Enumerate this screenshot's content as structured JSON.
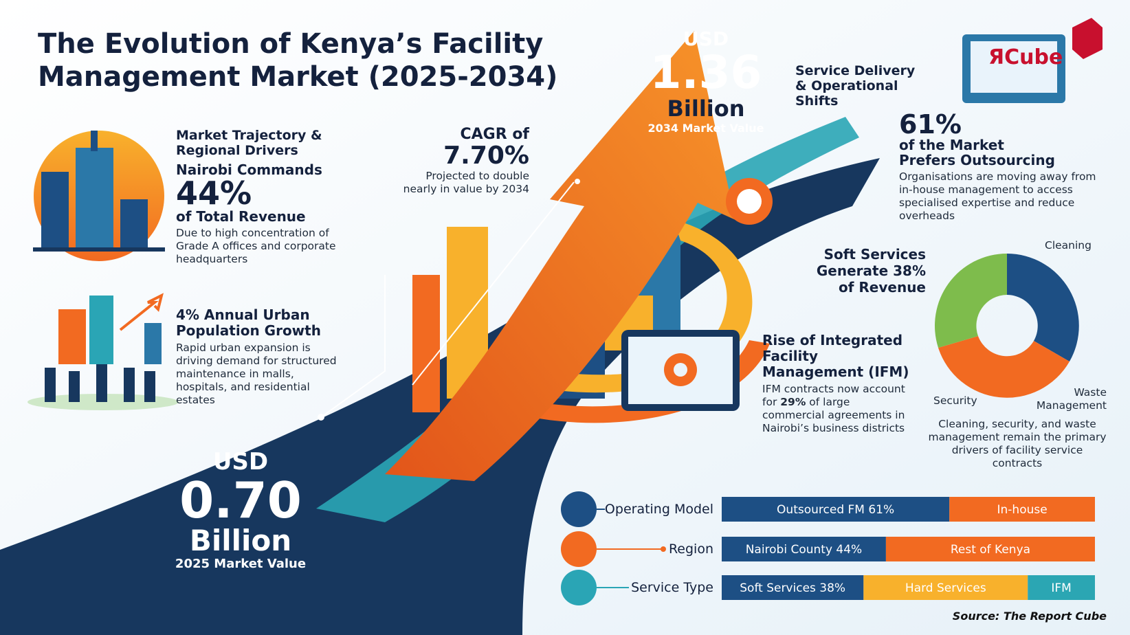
{
  "title_lines": [
    "The Evolution of Kenya’s Facility",
    "Management Market (2025-2034)"
  ],
  "logo": {
    "mark": "Я",
    "text": "Cube"
  },
  "start_value": {
    "currency": "USD",
    "amount": "0.70",
    "unit": "Billion",
    "caption": "2025 Market Value"
  },
  "end_value": {
    "currency": "USD",
    "amount": "1.36",
    "unit": "Billion",
    "caption": "2034 Market Value"
  },
  "cagr": {
    "label": "CAGR of",
    "value": "7.70%",
    "note": "Projected to double nearly in value by 2034"
  },
  "regional": {
    "heading": "Market Trajectory & Regional Drivers",
    "lead": "Nairobi Commands",
    "figure": "44%",
    "figure_caption": "of Total Revenue",
    "text": "Due to high concentration of Grade A offices and corporate headquarters"
  },
  "urban": {
    "heading": "4% Annual Urban Population Growth",
    "text": "Rapid urban expansion is driving demand for structured maintenance in malls, hospitals, and residential estates"
  },
  "shifts": {
    "heading": "Service Delivery & Operational Shifts"
  },
  "outsourcing": {
    "figure": "61%",
    "caption": "of the Market Prefers Outsourcing",
    "text": "Organisations are moving away from in-house management to access specialised expertise and reduce overheads"
  },
  "soft_services": {
    "heading": "Soft Services Generate 38% of Revenue",
    "labels": [
      "Cleaning",
      "Security",
      "Waste Management"
    ],
    "caption": "Cleaning, security, and waste management remain the primary drivers of facility service contracts"
  },
  "ifm": {
    "heading": "Rise of Integrated Facility Management (IFM)",
    "text_before": "IFM contracts now account for ",
    "highlight": "29%",
    "text_after": " of large commercial agreements in Nairobi’s business districts"
  },
  "bars": [
    {
      "label": "Operating Model",
      "segments": [
        {
          "label": "Outsourced FM 61%",
          "value": 61,
          "color": "#1d4f84"
        },
        {
          "label": "In-house",
          "value": 39,
          "color": "#f26a21"
        }
      ]
    },
    {
      "label": "Region",
      "segments": [
        {
          "label": "Nairobi County 44%",
          "value": 44,
          "color": "#1d4f84"
        },
        {
          "label": "Rest of Kenya",
          "value": 56,
          "color": "#f26a21"
        }
      ]
    },
    {
      "label": "Service Type",
      "segments": [
        {
          "label": "Soft Services 38%",
          "value": 38,
          "color": "#1d4f84"
        },
        {
          "label": "Hard Services",
          "value": 44,
          "color": "#f8b12c"
        },
        {
          "label": "IFM",
          "value": 18,
          "color": "#2ba6b3"
        }
      ]
    }
  ],
  "source": "Source: The Report Cube"
}
